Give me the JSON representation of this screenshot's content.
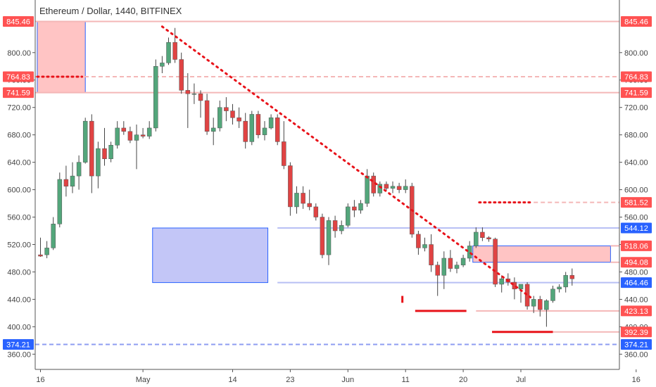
{
  "chart_data": {
    "type": "candlestick",
    "title": "Ethereum / Dollar, 1440, BITFINEX",
    "y_ticks": [
      "800.00",
      "760.00",
      "720.00",
      "680.00",
      "640.00",
      "600.00",
      "560.00",
      "520.00",
      "480.00",
      "440.00",
      "400.00",
      "360.00"
    ],
    "x_ticks": [
      "16",
      "May",
      "14",
      "23",
      "Jun",
      "11",
      "20",
      "Jul",
      "16"
    ],
    "ylim": [
      350,
      860
    ],
    "x_tick_candle_index": [
      0,
      16,
      30,
      39,
      48,
      57,
      66,
      75,
      93
    ],
    "levels": [
      {
        "label": "845.46",
        "value": 845.46,
        "color": "#ff5252",
        "line": "#f4b7b7",
        "style": "solid",
        "side": "both"
      },
      {
        "label": "764.83",
        "value": 764.83,
        "color": "#ff5252",
        "line": "#f4b7b7",
        "style": "dashed",
        "side": "both"
      },
      {
        "label": "741.59",
        "value": 741.59,
        "color": "#ff5252",
        "line": "#f4b7b7",
        "style": "solid",
        "side": "both"
      },
      {
        "label": "581.52",
        "value": 581.52,
        "color": "#ff5252",
        "line": "#f4b7b7",
        "style": "dashed",
        "side": "right",
        "from_index": 77
      },
      {
        "label": "544.12",
        "value": 544.12,
        "color": "#2962ff",
        "line": "#b8bff4",
        "style": "solid",
        "side": "right",
        "from_index": 37
      },
      {
        "label": "518.06",
        "value": 518.06,
        "color": "#ff5252",
        "line": "#f4b7b7",
        "style": "solid",
        "side": "right",
        "from_index": 89
      },
      {
        "label": "494.08",
        "value": 494.08,
        "color": "#ff5252",
        "line": "#f4b7b7",
        "style": "solid",
        "side": "right",
        "from_index": 89
      },
      {
        "label": "464.46",
        "value": 464.46,
        "color": "#2962ff",
        "line": "#b8bff4",
        "style": "solid",
        "side": "right",
        "from_index": 37
      },
      {
        "label": "423.13",
        "value": 423.13,
        "color": "#ff5252",
        "line": "#f4b7b7",
        "style": "solid",
        "side": "right",
        "from_index": 68
      },
      {
        "label": "392.39",
        "value": 392.39,
        "color": "#ff5252",
        "line": "#f4b7b7",
        "style": "solid",
        "side": "right",
        "from_index": 77
      },
      {
        "label": "374.21",
        "value": 374.21,
        "color": "#2962ff",
        "line": "#8e9cf2",
        "style": "dashed",
        "side": "both"
      }
    ],
    "zones": [
      {
        "name": "supply-zone-top",
        "x0": -0.5,
        "x1": 7,
        "y_top": 845.46,
        "y_bottom": 741.59,
        "fill": "#ffc4c4",
        "stroke": "#2962ff"
      },
      {
        "name": "demand-zone-mid",
        "x0": 17.5,
        "x1": 35.5,
        "y_top": 544.12,
        "y_bottom": 464.46,
        "fill": "#c3c6f7",
        "stroke": "#2962ff"
      },
      {
        "name": "supply-zone-right",
        "x0": 67.5,
        "x1": 89,
        "y_top": 518.06,
        "y_bottom": 494.08,
        "fill": "#ffc4c4",
        "stroke": "#2962ff"
      }
    ],
    "trendline": {
      "from": {
        "index": 19,
        "value": 838
      },
      "to": {
        "index": 76.5,
        "value": 443
      },
      "color": "#e8131a"
    },
    "markers": [
      {
        "index0": -0.5,
        "index1": 6.5,
        "value": 764.83,
        "style": "dotted"
      },
      {
        "index0": 68.5,
        "index1": 76.5,
        "value": 581.52,
        "style": "dotted"
      },
      {
        "index0": 56.5,
        "index1": 56.5,
        "value0": 445,
        "value1": 435,
        "style": "dotted-vertical"
      },
      {
        "index0": 58.5,
        "index1": 66.5,
        "value": 423.13,
        "style": "solid"
      },
      {
        "index0": 70.5,
        "index1": 80,
        "value": 392.39,
        "style": "solid"
      }
    ],
    "candles": [
      {
        "o": 505,
        "h": 530,
        "l": 502,
        "c": 503
      },
      {
        "o": 505,
        "h": 525,
        "l": 500,
        "c": 515
      },
      {
        "o": 515,
        "h": 560,
        "l": 512,
        "c": 550
      },
      {
        "o": 550,
        "h": 625,
        "l": 545,
        "c": 615
      },
      {
        "o": 615,
        "h": 635,
        "l": 590,
        "c": 605
      },
      {
        "o": 605,
        "h": 640,
        "l": 595,
        "c": 620
      },
      {
        "o": 620,
        "h": 650,
        "l": 600,
        "c": 640
      },
      {
        "o": 640,
        "h": 705,
        "l": 638,
        "c": 700
      },
      {
        "o": 700,
        "h": 710,
        "l": 595,
        "c": 620
      },
      {
        "o": 620,
        "h": 670,
        "l": 602,
        "c": 660
      },
      {
        "o": 660,
        "h": 690,
        "l": 635,
        "c": 645
      },
      {
        "o": 645,
        "h": 670,
        "l": 640,
        "c": 665
      },
      {
        "o": 665,
        "h": 700,
        "l": 660,
        "c": 690
      },
      {
        "o": 690,
        "h": 700,
        "l": 680,
        "c": 685
      },
      {
        "o": 685,
        "h": 692,
        "l": 668,
        "c": 672
      },
      {
        "o": 672,
        "h": 695,
        "l": 630,
        "c": 680
      },
      {
        "o": 680,
        "h": 690,
        "l": 675,
        "c": 678
      },
      {
        "o": 678,
        "h": 700,
        "l": 674,
        "c": 690
      },
      {
        "o": 690,
        "h": 790,
        "l": 685,
        "c": 780
      },
      {
        "o": 780,
        "h": 795,
        "l": 770,
        "c": 785
      },
      {
        "o": 785,
        "h": 822,
        "l": 782,
        "c": 815
      },
      {
        "o": 815,
        "h": 836,
        "l": 785,
        "c": 790
      },
      {
        "o": 790,
        "h": 800,
        "l": 740,
        "c": 745
      },
      {
        "o": 745,
        "h": 770,
        "l": 690,
        "c": 740
      },
      {
        "o": 740,
        "h": 755,
        "l": 725,
        "c": 740
      },
      {
        "o": 740,
        "h": 745,
        "l": 705,
        "c": 730
      },
      {
        "o": 730,
        "h": 740,
        "l": 680,
        "c": 685
      },
      {
        "o": 685,
        "h": 705,
        "l": 665,
        "c": 690
      },
      {
        "o": 690,
        "h": 730,
        "l": 685,
        "c": 720
      },
      {
        "o": 720,
        "h": 735,
        "l": 700,
        "c": 715
      },
      {
        "o": 715,
        "h": 725,
        "l": 695,
        "c": 705
      },
      {
        "o": 705,
        "h": 720,
        "l": 690,
        "c": 700
      },
      {
        "o": 700,
        "h": 712,
        "l": 660,
        "c": 670
      },
      {
        "o": 670,
        "h": 715,
        "l": 665,
        "c": 710
      },
      {
        "o": 710,
        "h": 715,
        "l": 675,
        "c": 680
      },
      {
        "o": 680,
        "h": 700,
        "l": 672,
        "c": 690
      },
      {
        "o": 690,
        "h": 710,
        "l": 688,
        "c": 705
      },
      {
        "o": 705,
        "h": 710,
        "l": 665,
        "c": 670
      },
      {
        "o": 670,
        "h": 700,
        "l": 630,
        "c": 635
      },
      {
        "o": 635,
        "h": 640,
        "l": 562,
        "c": 575
      },
      {
        "o": 575,
        "h": 605,
        "l": 565,
        "c": 595
      },
      {
        "o": 595,
        "h": 605,
        "l": 572,
        "c": 580
      },
      {
        "o": 580,
        "h": 600,
        "l": 570,
        "c": 575
      },
      {
        "o": 575,
        "h": 580,
        "l": 555,
        "c": 560
      },
      {
        "o": 560,
        "h": 565,
        "l": 500,
        "c": 505
      },
      {
        "o": 505,
        "h": 560,
        "l": 490,
        "c": 555
      },
      {
        "o": 555,
        "h": 562,
        "l": 530,
        "c": 540
      },
      {
        "o": 540,
        "h": 555,
        "l": 535,
        "c": 548
      },
      {
        "o": 548,
        "h": 580,
        "l": 545,
        "c": 575
      },
      {
        "o": 575,
        "h": 585,
        "l": 560,
        "c": 570
      },
      {
        "o": 570,
        "h": 585,
        "l": 565,
        "c": 580
      },
      {
        "o": 580,
        "h": 630,
        "l": 575,
        "c": 620
      },
      {
        "o": 620,
        "h": 625,
        "l": 590,
        "c": 595
      },
      {
        "o": 595,
        "h": 612,
        "l": 590,
        "c": 608
      },
      {
        "o": 608,
        "h": 612,
        "l": 598,
        "c": 602
      },
      {
        "o": 602,
        "h": 612,
        "l": 595,
        "c": 605
      },
      {
        "o": 605,
        "h": 610,
        "l": 595,
        "c": 600
      },
      {
        "o": 600,
        "h": 615,
        "l": 595,
        "c": 605
      },
      {
        "o": 605,
        "h": 610,
        "l": 530,
        "c": 535
      },
      {
        "o": 535,
        "h": 540,
        "l": 505,
        "c": 515
      },
      {
        "o": 515,
        "h": 530,
        "l": 510,
        "c": 520
      },
      {
        "o": 520,
        "h": 535,
        "l": 480,
        "c": 490
      },
      {
        "o": 490,
        "h": 495,
        "l": 445,
        "c": 475
      },
      {
        "o": 475,
        "h": 510,
        "l": 455,
        "c": 500
      },
      {
        "o": 500,
        "h": 512,
        "l": 480,
        "c": 485
      },
      {
        "o": 485,
        "h": 495,
        "l": 478,
        "c": 490
      },
      {
        "o": 490,
        "h": 505,
        "l": 487,
        "c": 500
      },
      {
        "o": 500,
        "h": 525,
        "l": 495,
        "c": 518
      },
      {
        "o": 518,
        "h": 545,
        "l": 515,
        "c": 538
      },
      {
        "o": 538,
        "h": 545,
        "l": 525,
        "c": 530
      },
      {
        "o": 530,
        "h": 532,
        "l": 524,
        "c": 528
      },
      {
        "o": 528,
        "h": 530,
        "l": 458,
        "c": 462
      },
      {
        "o": 462,
        "h": 475,
        "l": 450,
        "c": 470
      },
      {
        "o": 470,
        "h": 478,
        "l": 460,
        "c": 465
      },
      {
        "o": 465,
        "h": 472,
        "l": 440,
        "c": 455
      },
      {
        "o": 455,
        "h": 462,
        "l": 435,
        "c": 462
      },
      {
        "o": 462,
        "h": 465,
        "l": 425,
        "c": 430
      },
      {
        "o": 430,
        "h": 445,
        "l": 420,
        "c": 440
      },
      {
        "o": 440,
        "h": 445,
        "l": 415,
        "c": 425
      },
      {
        "o": 425,
        "h": 440,
        "l": 400,
        "c": 438
      },
      {
        "o": 438,
        "h": 460,
        "l": 435,
        "c": 455
      },
      {
        "o": 455,
        "h": 462,
        "l": 450,
        "c": 458
      },
      {
        "o": 458,
        "h": 480,
        "l": 450,
        "c": 475
      },
      {
        "o": 475,
        "h": 485,
        "l": 460,
        "c": 470
      }
    ],
    "colors": {
      "up": "#53a67b",
      "down": "#e04343",
      "wick": "#444444"
    }
  }
}
